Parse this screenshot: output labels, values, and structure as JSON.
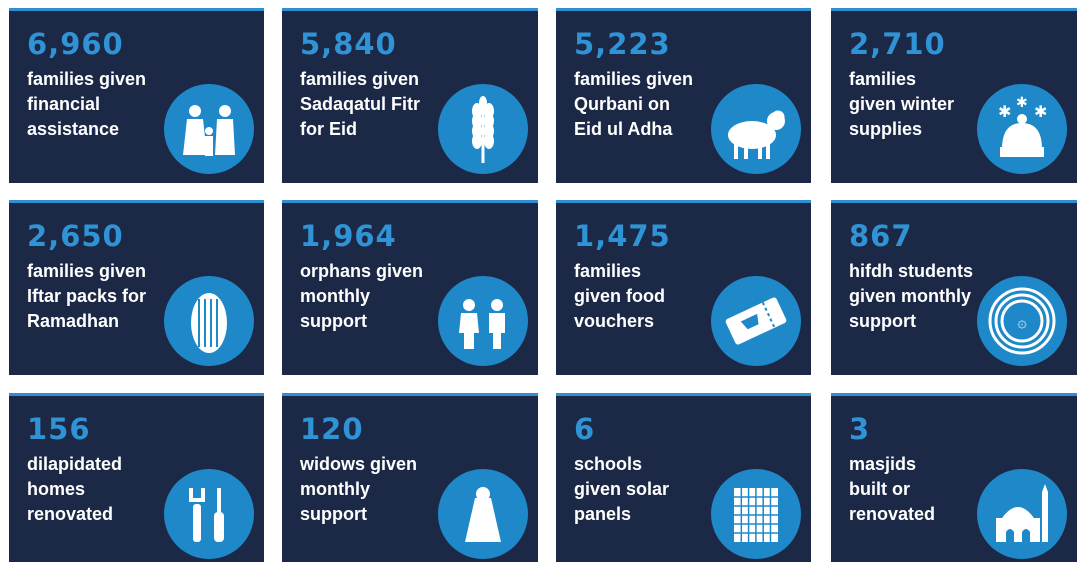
{
  "cards": [
    {
      "number": "6,960",
      "lines": [
        "families given",
        "financial",
        "assistance"
      ]
    },
    {
      "number": "5,840",
      "lines": [
        "families given",
        "Sadaqatul Fitr",
        "for Eid"
      ]
    },
    {
      "number": "5,223",
      "lines": [
        "families given",
        "Qurbani on",
        "Eid ul Adha"
      ]
    },
    {
      "number": "2,710",
      "lines": [
        "families",
        "given winter",
        "supplies"
      ]
    },
    {
      "number": "2,650",
      "lines": [
        "families given",
        "Iftar packs for",
        "Ramadhan"
      ]
    },
    {
      "number": "1,964",
      "lines": [
        "orphans given",
        "monthly",
        "support"
      ]
    },
    {
      "number": "1,475",
      "lines": [
        "families",
        "given food",
        "vouchers"
      ]
    },
    {
      "number": "867",
      "lines": [
        "hifdh students",
        "given monthly",
        "support"
      ]
    },
    {
      "number": "156",
      "lines": [
        "dilapidated",
        "homes",
        "renovated"
      ]
    },
    {
      "number": "120",
      "lines": [
        "widows given",
        "monthly",
        "support"
      ]
    },
    {
      "number": "6",
      "lines": [
        "schools",
        "given solar",
        "panels"
      ]
    },
    {
      "number": "3",
      "lines": [
        "masjids",
        "built or",
        "renovated"
      ]
    }
  ]
}
